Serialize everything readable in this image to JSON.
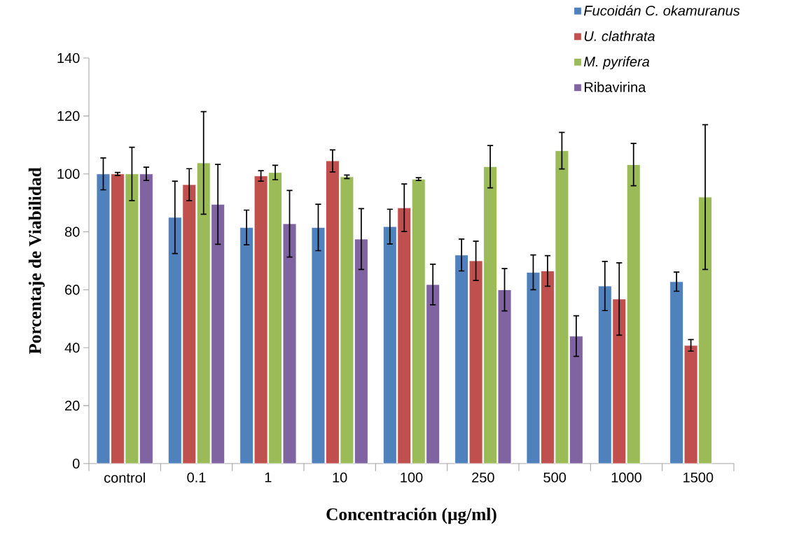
{
  "chart_data": {
    "type": "bar",
    "xlabel": "Concentración (µg/ml)",
    "ylabel": "Porcentaje de Viabilidad",
    "categories": [
      "control",
      "0.1",
      "1",
      "10",
      "100",
      "250",
      "500",
      "1000",
      "1500"
    ],
    "ylim": [
      0,
      140
    ],
    "yticks": [
      0,
      20,
      40,
      60,
      80,
      100,
      120,
      140
    ],
    "grid": false,
    "legend": "top right",
    "series": [
      {
        "name": "*Fucoidán C. okamuranus*",
        "color": "#4f81bd",
        "values": [
          100,
          85,
          81.5,
          81.5,
          81.8,
          72,
          66,
          61.3,
          62.8
        ],
        "errors": [
          5.5,
          12.5,
          6,
          8,
          6,
          5.5,
          6,
          8.5,
          3.3
        ]
      },
      {
        "name": "*U. clathrata*",
        "color": "#c0504d",
        "values": [
          100,
          96.3,
          99.3,
          104.5,
          88.3,
          70,
          66.5,
          56.8,
          40.8
        ],
        "errors": [
          0.5,
          5.5,
          1.8,
          3.8,
          8.2,
          6.8,
          5.3,
          12.5,
          2
        ]
      },
      {
        "name": "*M. pyrifera*",
        "color": "#9bbb59",
        "values": [
          100,
          103.8,
          100.5,
          99,
          98.2,
          102.5,
          108,
          103.2,
          92
        ],
        "errors": [
          9.2,
          17.7,
          2.5,
          0.6,
          0.5,
          7.3,
          6.3,
          7.3,
          25
        ]
      },
      {
        "name": "Ribavirina",
        "color": "#8064a2",
        "values": [
          100,
          89.5,
          82.8,
          77.5,
          61.8,
          60,
          44,
          null,
          null
        ],
        "errors": [
          2.3,
          13.8,
          11.5,
          10.5,
          7,
          7.3,
          7,
          null,
          null
        ]
      }
    ]
  }
}
